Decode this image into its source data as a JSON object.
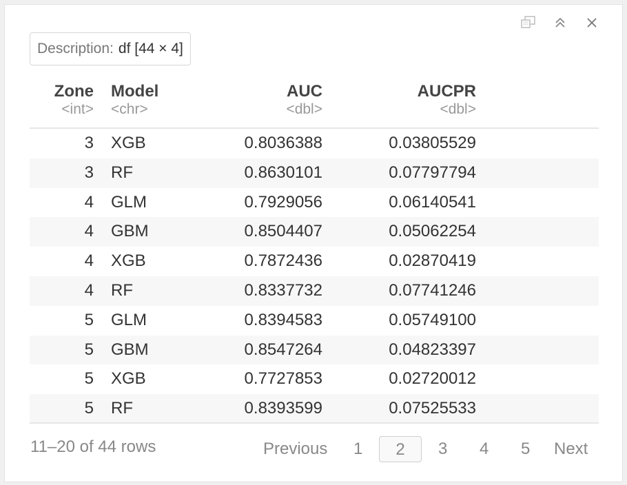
{
  "description": {
    "label": "Description:",
    "value": "df [44 × 4]"
  },
  "columns": [
    {
      "name": "Zone",
      "type": "<int>"
    },
    {
      "name": "Model",
      "type": "<chr>"
    },
    {
      "name": "AUC",
      "type": "<dbl>"
    },
    {
      "name": "AUCPR",
      "type": "<dbl>"
    }
  ],
  "rows": [
    {
      "zone": "3",
      "model": "XGB",
      "auc": "0.8036388",
      "aucpr": "0.03805529"
    },
    {
      "zone": "3",
      "model": "RF",
      "auc": "0.8630101",
      "aucpr": "0.07797794"
    },
    {
      "zone": "4",
      "model": "GLM",
      "auc": "0.7929056",
      "aucpr": "0.06140541"
    },
    {
      "zone": "4",
      "model": "GBM",
      "auc": "0.8504407",
      "aucpr": "0.05062254"
    },
    {
      "zone": "4",
      "model": "XGB",
      "auc": "0.7872436",
      "aucpr": "0.02870419"
    },
    {
      "zone": "4",
      "model": "RF",
      "auc": "0.8337732",
      "aucpr": "0.07741246"
    },
    {
      "zone": "5",
      "model": "GLM",
      "auc": "0.8394583",
      "aucpr": "0.05749100"
    },
    {
      "zone": "5",
      "model": "GBM",
      "auc": "0.8547264",
      "aucpr": "0.04823397"
    },
    {
      "zone": "5",
      "model": "XGB",
      "auc": "0.7727853",
      "aucpr": "0.02720012"
    },
    {
      "zone": "5",
      "model": "RF",
      "auc": "0.8393599",
      "aucpr": "0.07525533"
    }
  ],
  "footer": {
    "row_info": "11–20 of 44 rows",
    "previous": "Previous",
    "next": "Next",
    "pages": [
      "1",
      "2",
      "3",
      "4",
      "5"
    ],
    "current_page": "2"
  },
  "toolbar": {
    "icons": [
      "open-in-new-window-icon",
      "collapse-up-icon",
      "close-icon"
    ]
  },
  "colors": {
    "header_text": "#444444",
    "type_text": "#999999",
    "alt_row": "#f7f7f7",
    "muted": "#888888"
  }
}
